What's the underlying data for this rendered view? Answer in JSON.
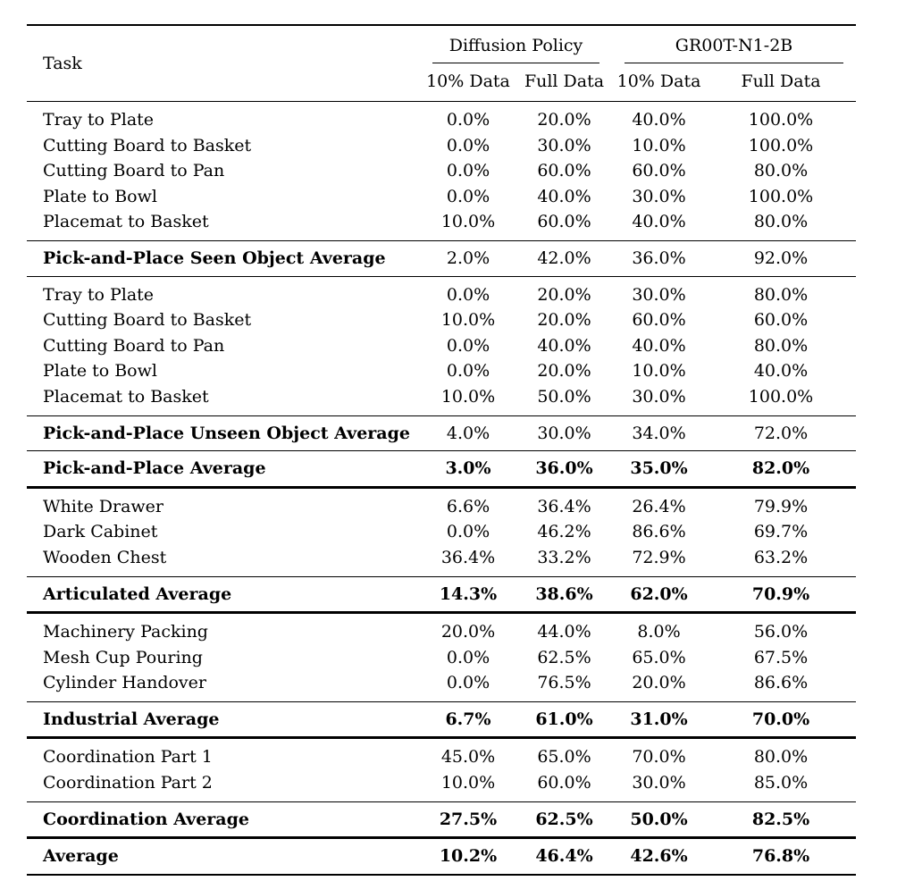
{
  "page": {
    "background_color": "#ffffff",
    "text_color": "#000000",
    "rule_color": "#000000"
  },
  "table": {
    "header": {
      "task_label": "Task",
      "groups": [
        {
          "label": "Diffusion Policy",
          "subcolumns": [
            "10% Data",
            "Full Data"
          ]
        },
        {
          "label": "GR00T-N1-2B",
          "subcolumns": [
            "10% Data",
            "Full Data"
          ]
        }
      ]
    },
    "sections": [
      {
        "name": "pick-and-place-seen",
        "rows": [
          {
            "task": "Tray to Plate",
            "values": [
              "0.0%",
              "20.0%",
              "40.0%",
              "100.0%"
            ]
          },
          {
            "task": "Cutting Board to Basket",
            "values": [
              "0.0%",
              "30.0%",
              "10.0%",
              "100.0%"
            ]
          },
          {
            "task": "Cutting Board to Pan",
            "values": [
              "0.0%",
              "60.0%",
              "60.0%",
              "80.0%"
            ]
          },
          {
            "task": "Plate to Bowl",
            "values": [
              "0.0%",
              "40.0%",
              "30.0%",
              "100.0%"
            ]
          },
          {
            "task": "Placemat to Basket",
            "values": [
              "10.0%",
              "60.0%",
              "40.0%",
              "80.0%"
            ]
          }
        ],
        "summary": {
          "task": "Pick-and-Place Seen Object Average",
          "values": [
            "2.0%",
            "42.0%",
            "36.0%",
            "92.0%"
          ],
          "values_bold": false
        },
        "rule_below": "thin"
      },
      {
        "name": "pick-and-place-unseen",
        "rows": [
          {
            "task": "Tray to Plate",
            "values": [
              "0.0%",
              "20.0%",
              "30.0%",
              "80.0%"
            ]
          },
          {
            "task": "Cutting Board to Basket",
            "values": [
              "10.0%",
              "20.0%",
              "60.0%",
              "60.0%"
            ]
          },
          {
            "task": "Cutting Board to Pan",
            "values": [
              "0.0%",
              "40.0%",
              "40.0%",
              "80.0%"
            ]
          },
          {
            "task": "Plate to Bowl",
            "values": [
              "0.0%",
              "20.0%",
              "10.0%",
              "40.0%"
            ]
          },
          {
            "task": "Placemat to Basket",
            "values": [
              "10.0%",
              "50.0%",
              "30.0%",
              "100.0%"
            ]
          }
        ],
        "summary": {
          "task": "Pick-and-Place Unseen Object Average",
          "values": [
            "4.0%",
            "30.0%",
            "34.0%",
            "72.0%"
          ],
          "values_bold": false
        },
        "rule_below": "thin"
      },
      {
        "name": "pick-and-place-average",
        "rows": [],
        "summary": {
          "task": "Pick-and-Place Average",
          "values": [
            "3.0%",
            "36.0%",
            "35.0%",
            "82.0%"
          ],
          "values_bold": true
        },
        "rule_below": "thick"
      },
      {
        "name": "articulated",
        "rows": [
          {
            "task": "White Drawer",
            "values": [
              "6.6%",
              "36.4%",
              "26.4%",
              "79.9%"
            ]
          },
          {
            "task": "Dark Cabinet",
            "values": [
              "0.0%",
              "46.2%",
              "86.6%",
              "69.7%"
            ]
          },
          {
            "task": "Wooden Chest",
            "values": [
              "36.4%",
              "33.2%",
              "72.9%",
              "63.2%"
            ]
          }
        ],
        "summary": {
          "task": "Articulated Average",
          "values": [
            "14.3%",
            "38.6%",
            "62.0%",
            "70.9%"
          ],
          "values_bold": true
        },
        "rule_below": "thick"
      },
      {
        "name": "industrial",
        "rows": [
          {
            "task": "Machinery Packing",
            "values": [
              "20.0%",
              "44.0%",
              "8.0%",
              "56.0%"
            ]
          },
          {
            "task": "Mesh Cup Pouring",
            "values": [
              "0.0%",
              "62.5%",
              "65.0%",
              "67.5%"
            ]
          },
          {
            "task": "Cylinder Handover",
            "values": [
              "0.0%",
              "76.5%",
              "20.0%",
              "86.6%"
            ]
          }
        ],
        "summary": {
          "task": "Industrial Average",
          "values": [
            "6.7%",
            "61.0%",
            "31.0%",
            "70.0%"
          ],
          "values_bold": true
        },
        "rule_below": "thick"
      },
      {
        "name": "coordination",
        "rows": [
          {
            "task": "Coordination Part 1",
            "values": [
              "45.0%",
              "65.0%",
              "70.0%",
              "80.0%"
            ]
          },
          {
            "task": "Coordination Part 2",
            "values": [
              "10.0%",
              "60.0%",
              "30.0%",
              "85.0%"
            ]
          }
        ],
        "summary": {
          "task": "Coordination Average",
          "values": [
            "27.5%",
            "62.5%",
            "50.0%",
            "82.5%"
          ],
          "values_bold": true
        },
        "rule_below": "thick"
      },
      {
        "name": "overall-average",
        "rows": [],
        "summary": {
          "task": "Average",
          "values": [
            "10.2%",
            "46.4%",
            "42.6%",
            "76.8%"
          ],
          "values_bold": true
        },
        "rule_below": "bottom"
      }
    ]
  }
}
